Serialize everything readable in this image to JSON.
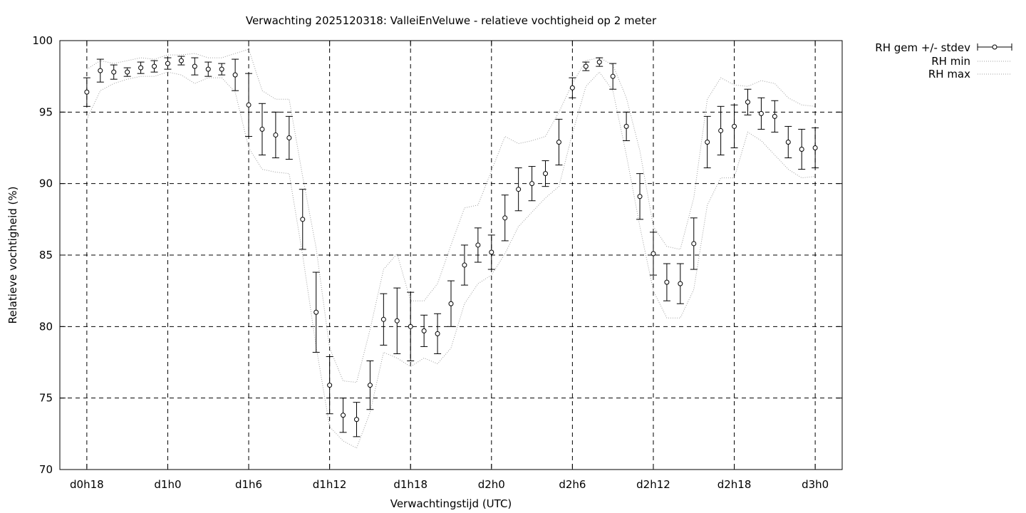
{
  "chart_data": {
    "type": "line",
    "title": "Verwachting 2025120318: ValleiEnVeluwe - relatieve vochtigheid op 2 meter",
    "xlabel": "Verwachtingstijd (UTC)",
    "ylabel": "Relatieve vochtigheid (%)",
    "xlim": [
      -2,
      56
    ],
    "ylim": [
      70,
      100
    ],
    "grid": true,
    "legend_position": "outside-top-right",
    "x_ticks": [
      {
        "x": 0,
        "label": "d0h18"
      },
      {
        "x": 6,
        "label": "d1h0"
      },
      {
        "x": 12,
        "label": "d1h6"
      },
      {
        "x": 18,
        "label": "d1h12"
      },
      {
        "x": 24,
        "label": "d1h18"
      },
      {
        "x": 30,
        "label": "d2h0"
      },
      {
        "x": 36,
        "label": "d2h6"
      },
      {
        "x": 42,
        "label": "d2h12"
      },
      {
        "x": 48,
        "label": "d2h18"
      },
      {
        "x": 54,
        "label": "d3h0"
      }
    ],
    "y_ticks": [
      {
        "y": 70,
        "label": "70"
      },
      {
        "y": 75,
        "label": "75"
      },
      {
        "y": 80,
        "label": "80"
      },
      {
        "y": 85,
        "label": "85"
      },
      {
        "y": 90,
        "label": "90"
      },
      {
        "y": 95,
        "label": "95"
      },
      {
        "y": 100,
        "label": "100"
      }
    ],
    "x": [
      0,
      1,
      2,
      3,
      4,
      5,
      6,
      7,
      8,
      9,
      10,
      11,
      12,
      13,
      14,
      15,
      16,
      17,
      18,
      19,
      20,
      21,
      22,
      23,
      24,
      25,
      26,
      27,
      28,
      29,
      30,
      31,
      32,
      33,
      34,
      35,
      36,
      37,
      38,
      39,
      40,
      41,
      42,
      43,
      44,
      45,
      46,
      47,
      48,
      49,
      50,
      51,
      52,
      53,
      54
    ],
    "series": [
      {
        "name": "RH gem +/- stdev",
        "style": "errorbars",
        "color": "#000000",
        "values": [
          96.4,
          97.9,
          97.8,
          97.8,
          98.1,
          98.2,
          98.4,
          98.6,
          98.2,
          98.0,
          98.0,
          97.6,
          95.5,
          93.8,
          93.4,
          93.2,
          87.5,
          81.0,
          75.9,
          73.8,
          73.5,
          75.9,
          80.5,
          80.4,
          80.0,
          79.7,
          79.5,
          81.6,
          84.3,
          85.7,
          85.2,
          87.6,
          89.6,
          90.0,
          90.7,
          92.9,
          96.7,
          98.2,
          98.5,
          97.5,
          94.0,
          89.1,
          85.1,
          83.1,
          83.0,
          85.8,
          92.9,
          93.7,
          94.0,
          95.7,
          94.9,
          94.7,
          92.9,
          92.4,
          92.5
        ],
        "stdev": [
          1.0,
          0.8,
          0.5,
          0.3,
          0.4,
          0.4,
          0.4,
          0.3,
          0.6,
          0.5,
          0.4,
          1.1,
          2.2,
          1.8,
          1.6,
          1.5,
          2.1,
          2.8,
          2.0,
          1.2,
          1.2,
          1.7,
          1.8,
          2.3,
          2.4,
          1.1,
          1.4,
          1.6,
          1.4,
          1.2,
          1.2,
          1.6,
          1.5,
          1.2,
          0.9,
          1.6,
          0.7,
          0.3,
          0.3,
          0.9,
          1.0,
          1.6,
          1.5,
          1.3,
          1.4,
          1.8,
          1.8,
          1.7,
          1.5,
          0.9,
          1.1,
          1.1,
          1.1,
          1.4,
          1.4
        ]
      },
      {
        "name": "RH min",
        "style": "dotted",
        "color": "#a0a0a0",
        "values": [
          94.5,
          96.5,
          97.0,
          97.3,
          97.5,
          97.5,
          97.8,
          97.6,
          97.0,
          97.4,
          97.4,
          96.4,
          92.5,
          91.0,
          90.8,
          90.7,
          85.0,
          78.6,
          73.0,
          72.0,
          71.5,
          74.0,
          78.2,
          77.8,
          77.2,
          77.8,
          77.4,
          78.5,
          81.6,
          83.0,
          83.6,
          85.1,
          87.0,
          88.0,
          89.0,
          89.8,
          93.5,
          96.8,
          97.8,
          96.5,
          92.0,
          87.0,
          82.5,
          80.6,
          80.6,
          82.6,
          88.5,
          90.4,
          90.4,
          93.6,
          93.0,
          92.0,
          91.0,
          90.4,
          90.5
        ]
      },
      {
        "name": "RH max",
        "style": "dotted",
        "color": "#a0a0a0",
        "values": [
          98.0,
          98.6,
          98.4,
          98.6,
          98.8,
          98.7,
          99.0,
          99.0,
          99.1,
          98.8,
          98.8,
          99.1,
          99.4,
          96.5,
          95.9,
          95.9,
          90.5,
          85.5,
          78.5,
          76.2,
          76.1,
          79.8,
          84.0,
          85.1,
          81.8,
          81.8,
          83.0,
          85.7,
          88.3,
          88.5,
          90.9,
          93.3,
          92.8,
          93.0,
          93.3,
          95.0,
          97.0,
          98.6,
          98.8,
          98.3,
          96.0,
          92.3,
          87.0,
          85.6,
          85.4,
          89.0,
          95.9,
          97.4,
          96.9,
          96.8,
          97.2,
          97.0,
          96.0,
          95.5,
          95.4
        ]
      }
    ]
  }
}
